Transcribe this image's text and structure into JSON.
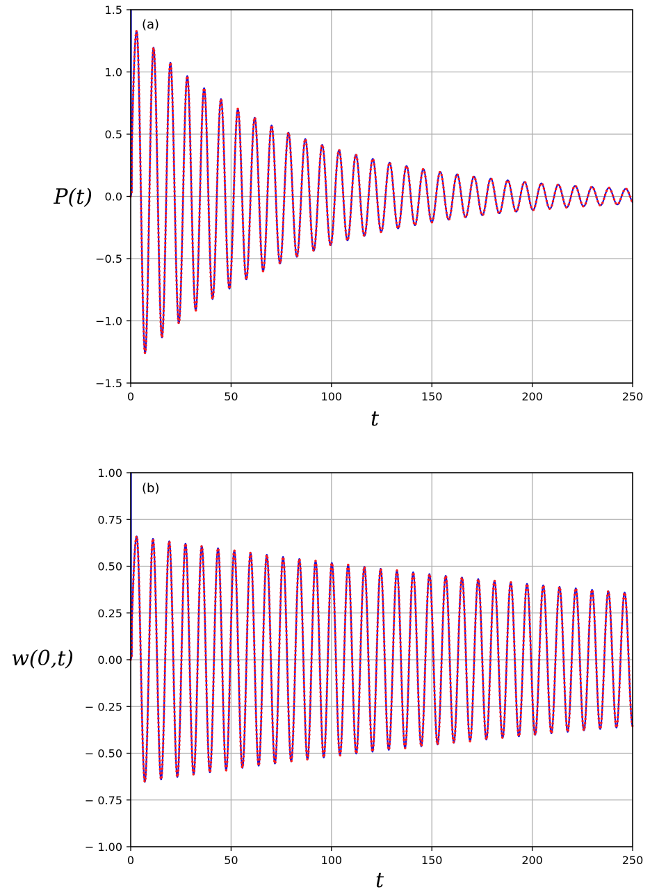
{
  "colors": {
    "series_a_line": "#1010e0",
    "series_b_dotted": "#ff1a1a",
    "grid": "#b0b0b0",
    "axes": "#000000"
  },
  "chart_data": [
    {
      "type": "line",
      "panel_label": "(a)",
      "xlabel": "t",
      "ylabel": "P(t)",
      "xlim": [
        0,
        250
      ],
      "ylim": [
        -1.5,
        1.5
      ],
      "x_ticks": [
        0,
        50,
        100,
        150,
        200,
        250
      ],
      "x_tick_labels": [
        "0",
        "50",
        "100",
        "150",
        "200",
        "250"
      ],
      "y_ticks": [
        1.5,
        1.0,
        0.5,
        0.0,
        -0.5,
        -1.0,
        -1.5
      ],
      "y_tick_labels": [
        "1.5",
        "1.0",
        "0.5",
        "0.0",
        "−0.5",
        "−1.0",
        "−1.5"
      ],
      "grid": true,
      "series": [
        {
          "style": "solid",
          "color": "#1010e0"
        },
        {
          "style": "dotted",
          "color": "#ff1a1a"
        }
      ],
      "waveform": {
        "period": 8.4,
        "phase_peak": 3.0,
        "amplitude_start": 1.38,
        "decay_rate": 0.0126,
        "offset": 0.0
      },
      "peaks": [
        [
          3.0,
          1.29
        ],
        [
          12.0,
          1.13
        ],
        [
          21.0,
          0.97
        ],
        [
          29.5,
          0.87
        ],
        [
          37.5,
          0.77
        ],
        [
          45.5,
          0.69
        ],
        [
          53.5,
          0.62
        ],
        [
          61.5,
          0.57
        ],
        [
          69.5,
          0.51
        ],
        [
          77.5,
          0.47
        ],
        [
          85.5,
          0.42
        ],
        [
          93.5,
          0.39
        ],
        [
          101.5,
          0.34
        ],
        [
          110.0,
          0.3
        ],
        [
          118.0,
          0.28
        ],
        [
          126.0,
          0.26
        ],
        [
          134.0,
          0.24
        ],
        [
          142.5,
          0.22
        ],
        [
          150.5,
          0.19
        ],
        [
          158.5,
          0.17
        ],
        [
          166.5,
          0.16
        ],
        [
          175.0,
          0.14
        ],
        [
          183.0,
          0.12
        ],
        [
          191.0,
          0.11
        ],
        [
          199.5,
          0.1
        ],
        [
          207.5,
          0.09
        ],
        [
          215.5,
          0.08
        ],
        [
          223.5,
          0.07
        ],
        [
          232.0,
          0.07
        ],
        [
          240.0,
          0.06
        ],
        [
          248.0,
          0.06
        ]
      ],
      "troughs": [
        [
          7.5,
          -1.21
        ],
        [
          16.5,
          -1.04
        ],
        [
          25.0,
          -0.91
        ],
        [
          33.5,
          -0.81
        ],
        [
          41.5,
          -0.73
        ],
        [
          49.5,
          -0.65
        ],
        [
          57.5,
          -0.59
        ],
        [
          65.5,
          -0.53
        ],
        [
          73.5,
          -0.48
        ],
        [
          81.5,
          -0.44
        ],
        [
          89.5,
          -0.39
        ],
        [
          97.5,
          -0.36
        ],
        [
          106.0,
          -0.32
        ],
        [
          114.0,
          -0.29
        ],
        [
          122.0,
          -0.26
        ],
        [
          130.0,
          -0.24
        ],
        [
          138.5,
          -0.22
        ],
        [
          146.5,
          -0.19
        ],
        [
          154.5,
          -0.17
        ],
        [
          162.5,
          -0.16
        ],
        [
          171.0,
          -0.14
        ],
        [
          179.0,
          -0.13
        ],
        [
          187.0,
          -0.11
        ],
        [
          195.5,
          -0.1
        ],
        [
          203.5,
          -0.09
        ],
        [
          211.5,
          -0.08
        ],
        [
          219.5,
          -0.08
        ],
        [
          228.0,
          -0.07
        ],
        [
          236.0,
          -0.06
        ],
        [
          244.0,
          -0.06
        ]
      ]
    },
    {
      "type": "line",
      "panel_label": "(b)",
      "xlabel": "t",
      "ylabel": "w(0,t)",
      "xlim": [
        0,
        250
      ],
      "ylim": [
        -1.0,
        1.0
      ],
      "x_ticks": [
        0,
        50,
        100,
        150,
        200,
        250
      ],
      "x_tick_labels": [
        "0",
        "50",
        "100",
        "150",
        "200",
        "250"
      ],
      "y_ticks": [
        1.0,
        0.75,
        0.5,
        0.25,
        0.0,
        -0.25,
        -0.5,
        -0.75,
        -1.0
      ],
      "y_tick_labels": [
        "1.00",
        "0.75",
        "0.50",
        "0.25",
        "0.00",
        "− 0.25",
        "− 0.50",
        "− 0.75",
        "− 1.00"
      ],
      "grid": true,
      "series": [
        {
          "style": "solid",
          "color": "#1010e0"
        },
        {
          "style": "dotted",
          "color": "#ff1a1a"
        }
      ],
      "waveform": {
        "period": 8.1,
        "phase_peak": 3.0,
        "amplitude_start": 0.665,
        "decay_rate": 0.0025,
        "offset": 0.0
      },
      "peaks": [
        [
          3.0,
          0.66
        ],
        [
          12.0,
          0.63
        ],
        [
          21.0,
          0.6
        ],
        [
          29.5,
          0.58
        ],
        [
          37.5,
          0.56
        ],
        [
          45.5,
          0.54
        ],
        [
          53.5,
          0.53
        ],
        [
          61.5,
          0.52
        ],
        [
          69.5,
          0.5
        ],
        [
          77.5,
          0.49
        ],
        [
          85.5,
          0.48
        ],
        [
          93.5,
          0.47
        ],
        [
          101.5,
          0.46
        ],
        [
          110.0,
          0.45
        ],
        [
          118.0,
          0.45
        ],
        [
          126.0,
          0.44
        ],
        [
          134.0,
          0.43
        ],
        [
          142.5,
          0.42
        ],
        [
          150.5,
          0.42
        ],
        [
          158.5,
          0.41
        ],
        [
          166.5,
          0.4
        ],
        [
          175.0,
          0.4
        ],
        [
          183.0,
          0.39
        ],
        [
          191.0,
          0.38
        ],
        [
          199.5,
          0.38
        ],
        [
          207.5,
          0.37
        ],
        [
          215.5,
          0.37
        ],
        [
          223.5,
          0.37
        ],
        [
          232.0,
          0.36
        ],
        [
          240.0,
          0.36
        ],
        [
          248.0,
          0.36
        ]
      ],
      "troughs": [
        [
          7.5,
          -0.65
        ],
        [
          16.5,
          -0.62
        ],
        [
          25.0,
          -0.59
        ],
        [
          33.5,
          -0.57
        ],
        [
          41.5,
          -0.55
        ],
        [
          49.5,
          -0.53
        ],
        [
          57.5,
          -0.52
        ],
        [
          65.5,
          -0.51
        ],
        [
          73.5,
          -0.5
        ],
        [
          81.5,
          -0.49
        ],
        [
          89.5,
          -0.48
        ],
        [
          97.5,
          -0.47
        ],
        [
          106.0,
          -0.46
        ],
        [
          114.0,
          -0.45
        ],
        [
          122.0,
          -0.44
        ],
        [
          130.0,
          -0.43
        ],
        [
          138.5,
          -0.43
        ],
        [
          146.5,
          -0.42
        ],
        [
          154.5,
          -0.41
        ],
        [
          162.5,
          -0.41
        ],
        [
          171.0,
          -0.4
        ],
        [
          179.0,
          -0.4
        ],
        [
          187.0,
          -0.39
        ],
        [
          195.5,
          -0.39
        ],
        [
          203.5,
          -0.38
        ],
        [
          211.5,
          -0.38
        ],
        [
          219.5,
          -0.37
        ],
        [
          228.0,
          -0.37
        ],
        [
          236.0,
          -0.37
        ],
        [
          244.0,
          -0.36
        ]
      ]
    }
  ]
}
